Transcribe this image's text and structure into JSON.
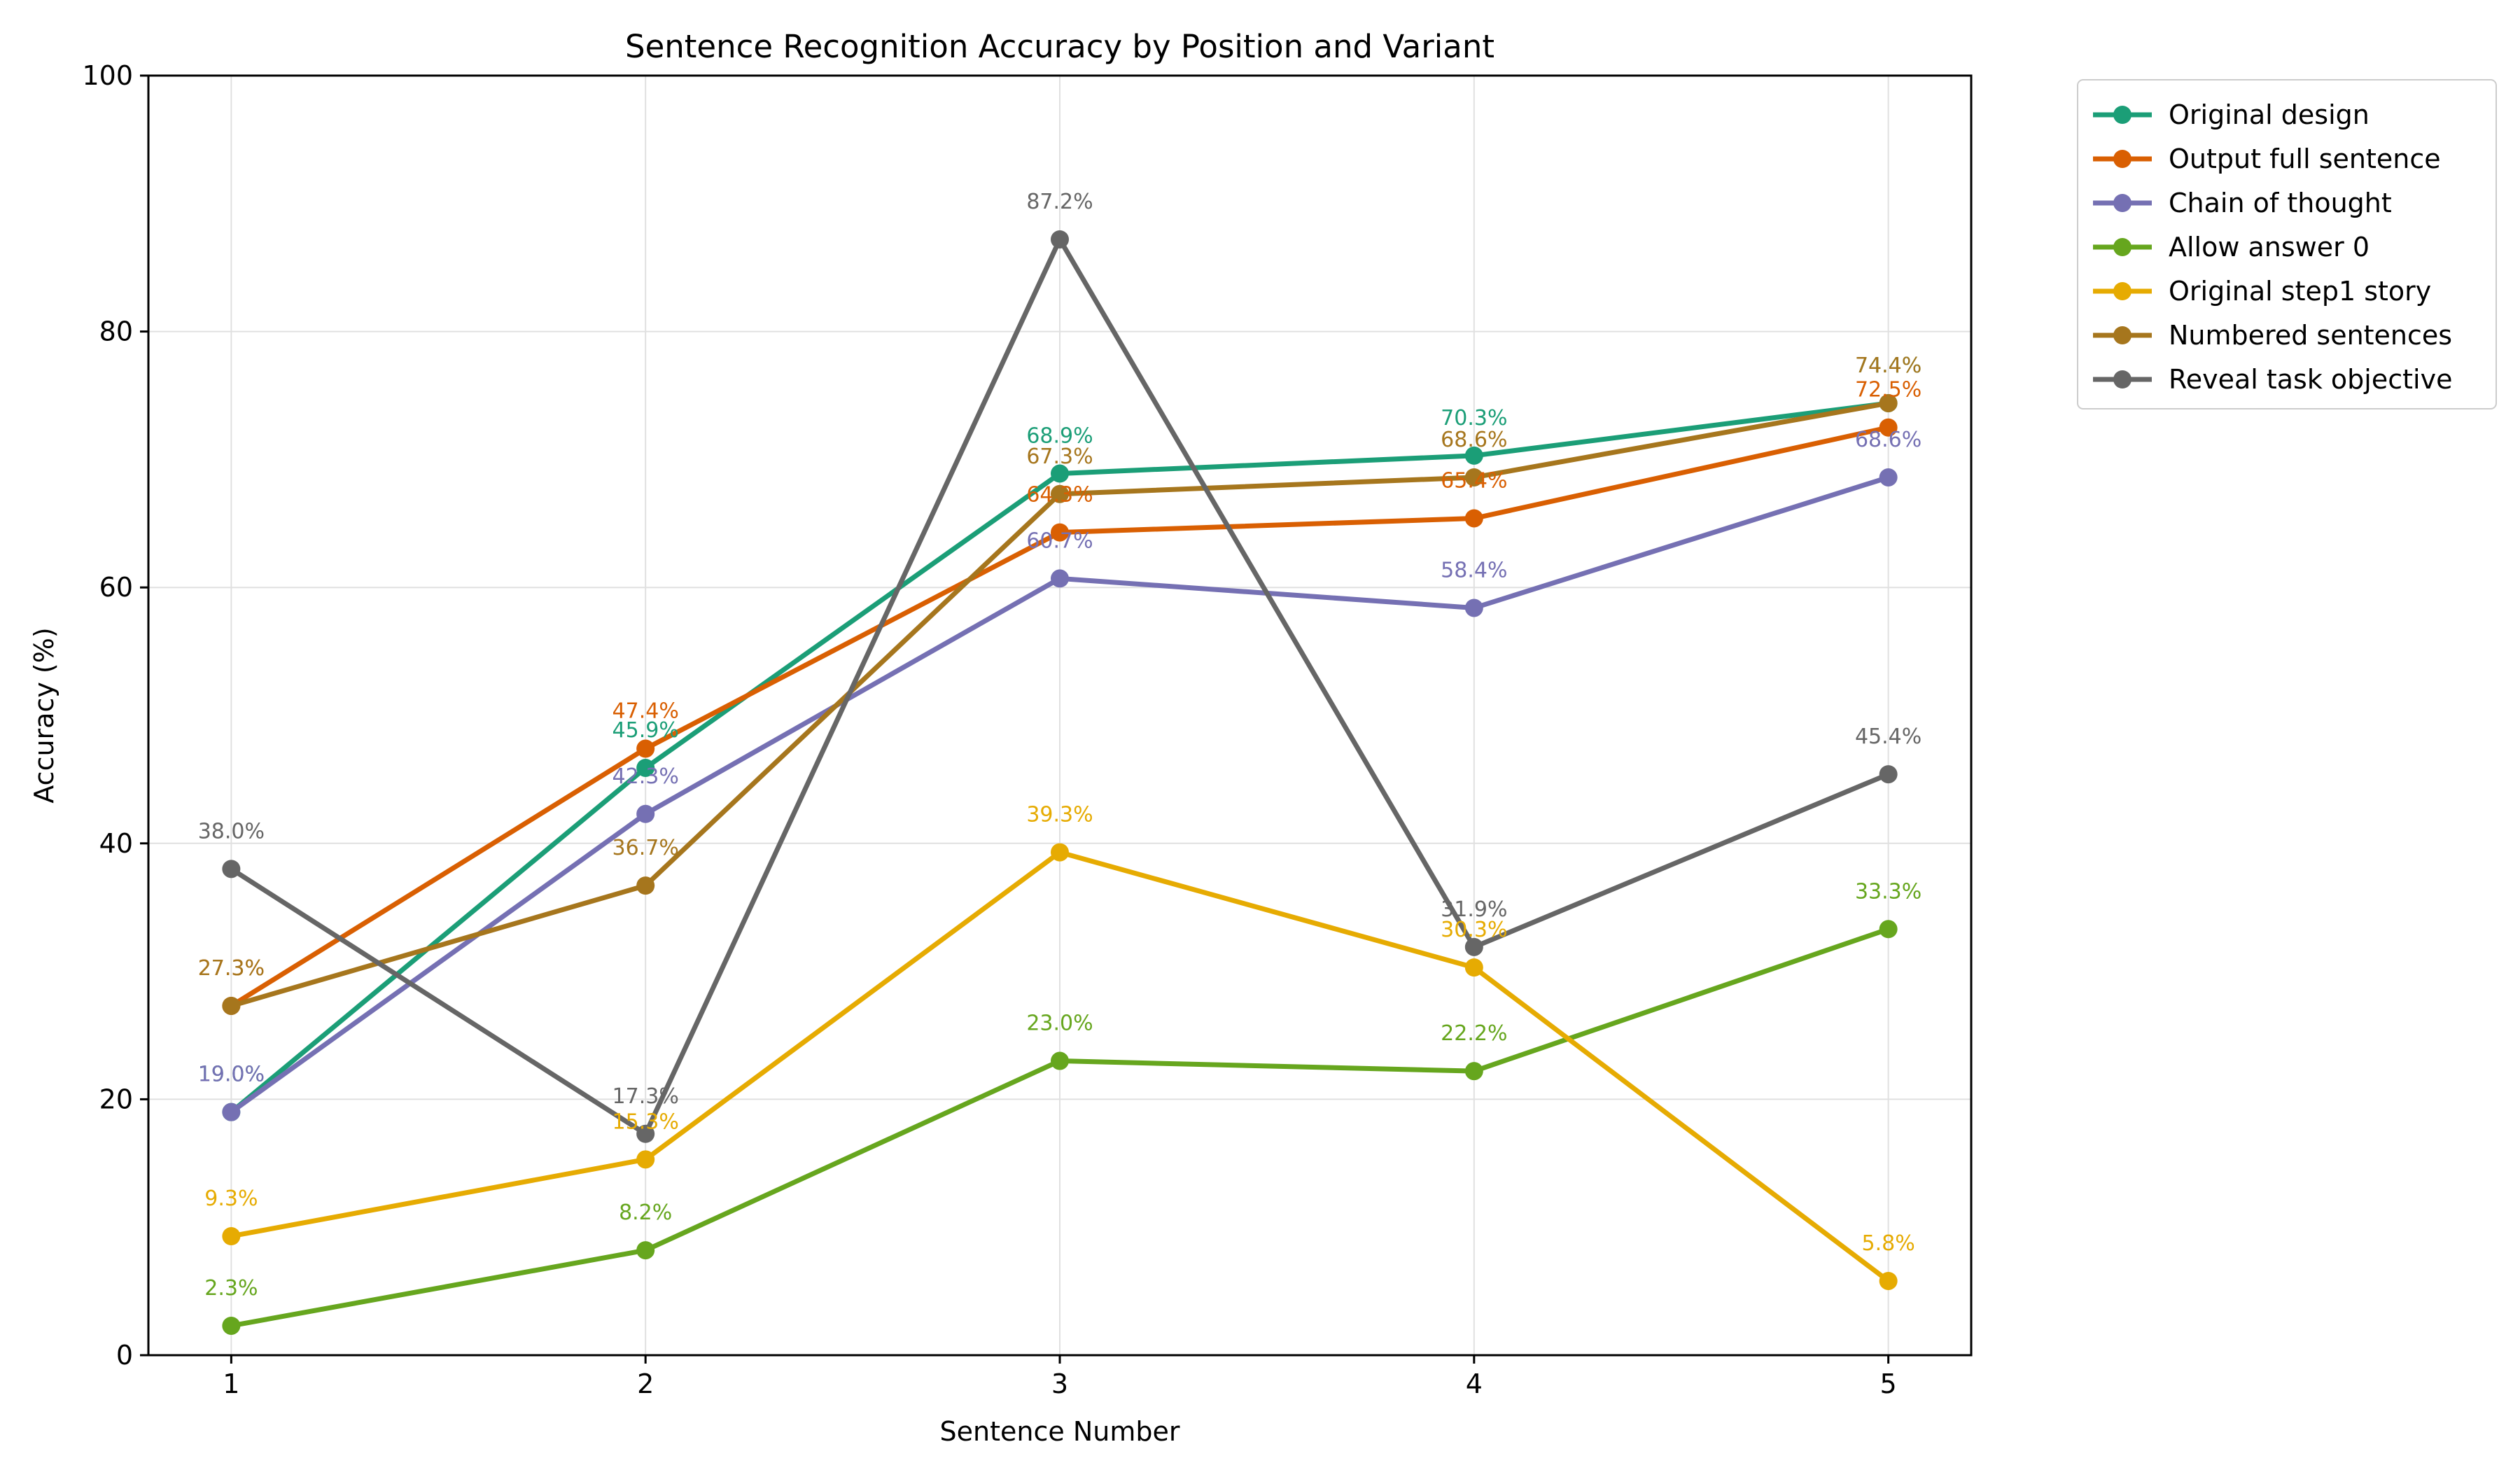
{
  "chart_data": {
    "type": "line",
    "title": "Sentence Recognition Accuracy by Position and Variant",
    "xlabel": "Sentence Number",
    "ylabel": "Accuracy (%)",
    "x": [
      1,
      2,
      3,
      4,
      5
    ],
    "x_tick_labels": [
      "1",
      "2",
      "3",
      "4",
      "5"
    ],
    "ylim": [
      0,
      100
    ],
    "y_ticks": [
      0,
      20,
      40,
      60,
      80,
      100
    ],
    "grid": true,
    "legend_position": "outside-top-right",
    "series": [
      {
        "name": "Original design",
        "color": "#1b9e77",
        "values": [
          19.0,
          45.9,
          68.9,
          70.3,
          74.4
        ],
        "labels": [
          "19.0%",
          "45.9%",
          "68.9%",
          "70.3%",
          "74.4%"
        ]
      },
      {
        "name": "Output full sentence",
        "color": "#d95f02",
        "values": [
          27.3,
          47.4,
          64.3,
          65.4,
          72.5
        ],
        "labels": [
          "27.3%",
          "47.4%",
          "64.3%",
          "65.4%",
          "72.5%"
        ]
      },
      {
        "name": "Chain of thought",
        "color": "#7570b3",
        "values": [
          19.0,
          42.3,
          60.7,
          58.4,
          68.6
        ],
        "labels": [
          "19.0%",
          "42.3%",
          "60.7%",
          "58.4%",
          "68.6%"
        ]
      },
      {
        "name": "Allow answer 0",
        "color": "#66a61e",
        "values": [
          2.3,
          8.2,
          23.0,
          22.2,
          33.3
        ],
        "labels": [
          "2.3%",
          "8.2%",
          "23.0%",
          "22.2%",
          "33.3%"
        ]
      },
      {
        "name": "Original step1 story",
        "color": "#e6ab02",
        "values": [
          9.3,
          15.3,
          39.3,
          30.3,
          5.8
        ],
        "labels": [
          "9.3%",
          "15.3%",
          "39.3%",
          "30.3%",
          "5.8%"
        ]
      },
      {
        "name": "Numbered sentences",
        "color": "#a6761d",
        "values": [
          27.3,
          36.7,
          67.3,
          68.6,
          74.4
        ],
        "labels": [
          "27.3%",
          "36.7%",
          "67.3%",
          "68.6%",
          "74.4%"
        ]
      },
      {
        "name": "Reveal task objective",
        "color": "#666666",
        "values": [
          38.0,
          17.3,
          87.2,
          31.9,
          45.4
        ],
        "labels": [
          "38.0%",
          "17.3%",
          "87.2%",
          "31.9%",
          "45.4%"
        ]
      }
    ]
  }
}
